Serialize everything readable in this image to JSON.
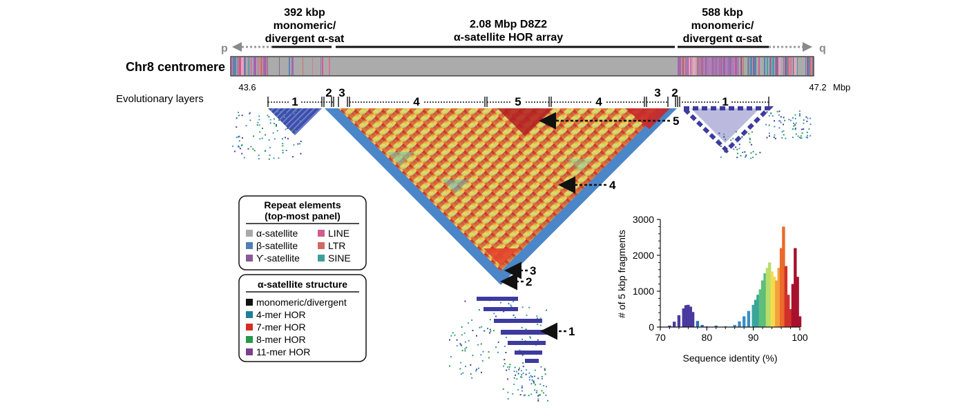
{
  "header": {
    "left_block": {
      "line1": "392 kbp",
      "line2": "monomeric/",
      "line3": "divergent α-sat"
    },
    "center_block": {
      "line1": "2.08 Mbp D8Z2",
      "line2": "α-satellite HOR array"
    },
    "right_block": {
      "line1": "588 kbp",
      "line2": "monomeric/",
      "line3": "divergent α-sat"
    },
    "p_arm": "p",
    "q_arm": "q"
  },
  "track": {
    "label": "Chr8 centromere",
    "start_label": "43.6",
    "end_label": "47.2",
    "unit": "Mbp"
  },
  "layers": {
    "title": "Evolutionary layers",
    "labels": [
      "1",
      "2",
      "3",
      "4",
      "5",
      "4",
      "3",
      "2",
      "1"
    ]
  },
  "callouts": [
    "5",
    "4",
    "3",
    "2",
    "1"
  ],
  "legend_repeats": {
    "title_line1": "Repeat elements",
    "title_line2": "(top-most panel)",
    "items": [
      {
        "label": "α-satellite",
        "color": "#a9a9a9"
      },
      {
        "label": "LINE",
        "color": "#d35b8d"
      },
      {
        "label": "β-satellite",
        "color": "#4f7fb5"
      },
      {
        "label": "LTR",
        "color": "#d0695f"
      },
      {
        "label": "ϒ-satellite",
        "color": "#8a5a93"
      },
      {
        "label": "SINE",
        "color": "#3f9d9c"
      }
    ]
  },
  "legend_structure": {
    "title": "α-satellite structure",
    "items": [
      {
        "label": "monomeric/divergent",
        "color": "#111111"
      },
      {
        "label": "4-mer HOR",
        "color": "#1f7f96"
      },
      {
        "label": "7-mer HOR",
        "color": "#d62d26"
      },
      {
        "label": "8-mer HOR",
        "color": "#26994a"
      },
      {
        "label": "11-mer HOR",
        "color": "#7c3f8e"
      }
    ]
  },
  "chart_data": {
    "type": "bar",
    "xlabel": "Sequence identity (%)",
    "ylabel": "# of 5 kbp fragments",
    "xlim": [
      70,
      100
    ],
    "ylim": [
      0,
      3000
    ],
    "xticks": [
      70,
      80,
      90,
      100
    ],
    "yticks": [
      0,
      1000,
      2000,
      3000
    ],
    "x": [
      72,
      73,
      74,
      75,
      75.5,
      76,
      76.5,
      77,
      78,
      79,
      80,
      82,
      84,
      86,
      87,
      88,
      89,
      90,
      90.5,
      91,
      91.5,
      92,
      92.5,
      93,
      93.5,
      94,
      94.5,
      95,
      95.5,
      96,
      96.5,
      97,
      97.5,
      98,
      98.5,
      99,
      99.5,
      100
    ],
    "values": [
      40,
      150,
      330,
      520,
      610,
      620,
      570,
      420,
      170,
      60,
      20,
      40,
      20,
      60,
      160,
      300,
      450,
      620,
      760,
      900,
      1050,
      1300,
      1500,
      1650,
      1800,
      1550,
      1400,
      1300,
      1650,
      2200,
      2800,
      1700,
      900,
      500,
      1200,
      2200,
      1400,
      300
    ]
  }
}
